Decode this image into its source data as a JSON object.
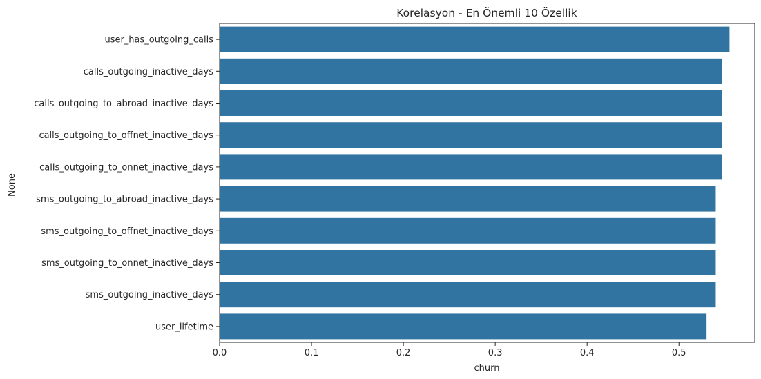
{
  "chart_data": {
    "type": "bar",
    "orientation": "horizontal",
    "title": "Korelasyon - En Önemli 10 Özellik",
    "xlabel": "churn",
    "ylabel": "None",
    "categories": [
      "user_has_outgoing_calls",
      "calls_outgoing_inactive_days",
      "calls_outgoing_to_abroad_inactive_days",
      "calls_outgoing_to_offnet_inactive_days",
      "calls_outgoing_to_onnet_inactive_days",
      "sms_outgoing_to_abroad_inactive_days",
      "sms_outgoing_to_offnet_inactive_days",
      "sms_outgoing_to_onnet_inactive_days",
      "sms_outgoing_inactive_days",
      "user_lifetime"
    ],
    "values": [
      0.555,
      0.547,
      0.547,
      0.547,
      0.547,
      0.54,
      0.54,
      0.54,
      0.54,
      0.53
    ],
    "xlim": [
      0,
      0.5825
    ],
    "xticks": [
      0.0,
      0.1,
      0.2,
      0.3,
      0.4,
      0.5
    ],
    "xtick_labels": [
      "0.0",
      "0.1",
      "0.2",
      "0.3",
      "0.4",
      "0.5"
    ],
    "bar_color": "#3274a1",
    "grid": false
  }
}
